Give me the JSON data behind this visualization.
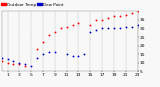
{
  "background_color": "#f8f8f8",
  "grid_color": "#aaaaaa",
  "legend_temp_color": "#ff0000",
  "legend_dew_color": "#0000cc",
  "legend_temp_label": "Outdoor Temp",
  "legend_dew_label": "Dew Point",
  "ylim": [
    5,
    40
  ],
  "xlim": [
    0,
    23
  ],
  "ytick_vals": [
    5,
    10,
    15,
    20,
    25,
    30,
    35
  ],
  "xtick_vals": [
    1,
    3,
    5,
    7,
    9,
    11,
    13,
    15,
    17,
    19,
    21,
    23
  ],
  "temp_x": [
    0,
    1,
    2,
    3,
    4,
    6,
    7,
    8,
    9,
    10,
    11,
    12,
    13,
    15,
    16,
    17,
    18,
    19,
    20,
    21,
    22,
    23
  ],
  "temp_y": [
    11,
    10,
    9,
    9,
    8,
    18,
    22,
    26,
    28,
    30,
    31,
    32,
    33,
    32,
    35,
    35,
    36,
    37,
    37,
    38,
    39,
    40
  ],
  "dew_x": [
    0,
    1,
    2,
    3,
    4,
    5,
    6,
    7,
    8,
    9,
    11,
    12,
    13,
    14,
    15,
    16,
    17,
    18,
    19,
    20,
    21,
    22,
    23
  ],
  "dew_y": [
    13,
    12,
    11,
    10,
    9,
    8,
    13,
    15,
    16,
    16,
    15,
    14,
    14,
    15,
    28,
    29,
    30,
    30,
    30,
    30,
    31,
    31,
    32
  ],
  "marker_size": 1.8,
  "tick_fontsize": 3.2,
  "legend_fontsize": 3.0
}
